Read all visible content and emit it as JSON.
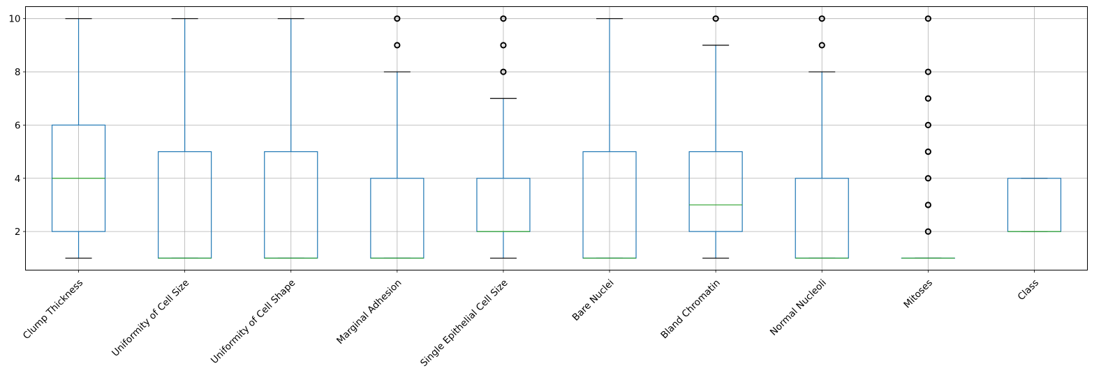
{
  "chart_data": {
    "type": "box",
    "title": "",
    "xlabel": "",
    "ylabel": "",
    "ylim": [
      0.55,
      10.45
    ],
    "yticks": [
      2,
      4,
      6,
      8,
      10
    ],
    "grid": true,
    "categories": [
      "Clump Thickness",
      "Uniformity of Cell Size",
      "Uniformity of Cell Shape",
      "Marginal Adhesion",
      "Single Epithelial Cell Size",
      "Bare Nuclei",
      "Bland Chromatin",
      "Normal Nucleoli",
      "Mitoses",
      "Class"
    ],
    "boxes": [
      {
        "whislo": 1,
        "q1": 2,
        "med": 4,
        "q3": 6,
        "whishi": 10,
        "fliers": []
      },
      {
        "whislo": 1,
        "q1": 1,
        "med": 1,
        "q3": 5,
        "whishi": 10,
        "fliers": []
      },
      {
        "whislo": 1,
        "q1": 1,
        "med": 1,
        "q3": 5,
        "whishi": 10,
        "fliers": []
      },
      {
        "whislo": 1,
        "q1": 1,
        "med": 1,
        "q3": 4,
        "whishi": 8,
        "fliers": [
          9,
          10
        ]
      },
      {
        "whislo": 1,
        "q1": 2,
        "med": 2,
        "q3": 4,
        "whishi": 7,
        "fliers": [
          8,
          9,
          10
        ]
      },
      {
        "whislo": 1,
        "q1": 1,
        "med": 1,
        "q3": 5,
        "whishi": 10,
        "fliers": []
      },
      {
        "whislo": 1,
        "q1": 2,
        "med": 3,
        "q3": 5,
        "whishi": 9,
        "fliers": [
          10
        ]
      },
      {
        "whislo": 1,
        "q1": 1,
        "med": 1,
        "q3": 4,
        "whishi": 8,
        "fliers": [
          9,
          10
        ]
      },
      {
        "whislo": 1,
        "q1": 1,
        "med": 1,
        "q3": 1,
        "whishi": 1,
        "fliers": [
          2,
          3,
          4,
          5,
          6,
          7,
          8,
          10
        ]
      },
      {
        "whislo": 2,
        "q1": 2,
        "med": 2,
        "q3": 4,
        "whishi": 4,
        "fliers": []
      }
    ],
    "colors": {
      "box": "#1f77b4",
      "median": "#2ca02c",
      "cap": "#000000",
      "flier": "#000000",
      "grid": "#b0b0b0"
    }
  }
}
